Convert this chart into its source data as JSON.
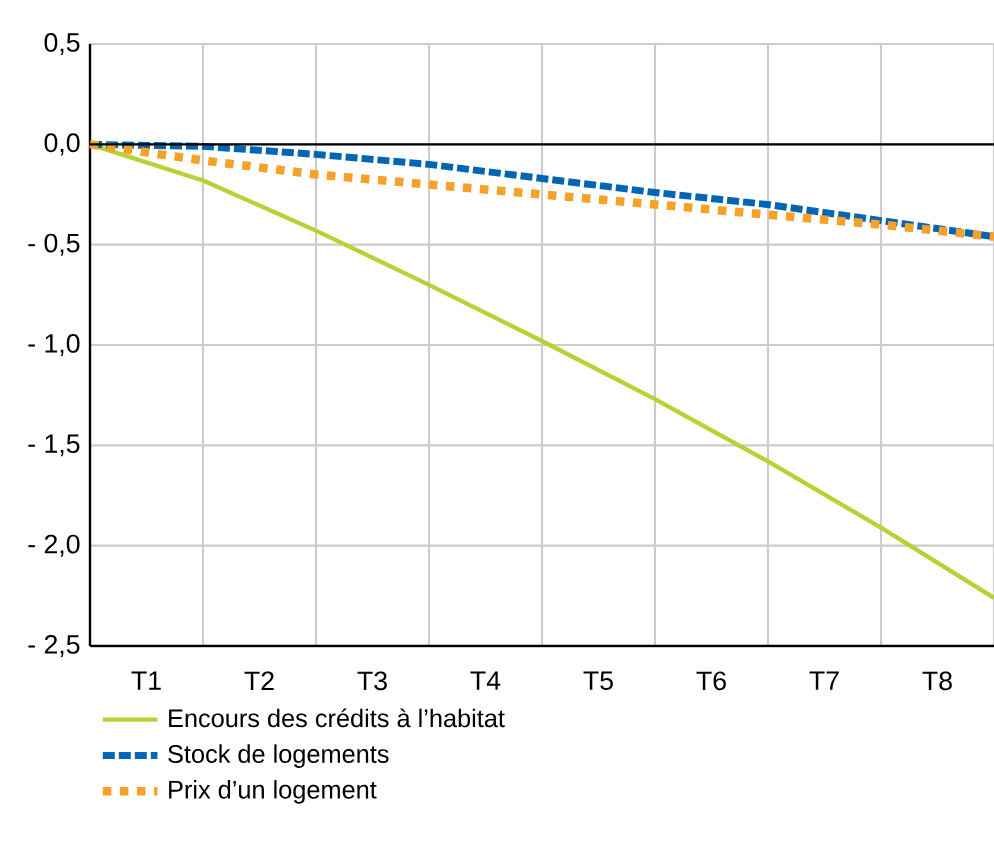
{
  "chart_data": {
    "type": "line",
    "categories": [
      null,
      null,
      null,
      null,
      null,
      null,
      null,
      null,
      null
    ],
    "annotations": [
      "T1",
      "T2",
      "T3",
      "T4",
      "T5",
      "T6",
      "T7",
      "T8"
    ],
    "series": [
      {
        "name": "Encours des crédits à l’habitat",
        "color": "#b5d334",
        "line_style": "solid",
        "values": [
          0,
          -0.18,
          -0.43,
          -0.7,
          -0.98,
          -1.27,
          -1.58,
          -1.91,
          -2.26
        ]
      },
      {
        "name": "Stock de logements",
        "color": "#0066b3",
        "line_style": "dashed",
        "values": [
          0,
          -0.01,
          -0.05,
          -0.1,
          -0.17,
          -0.24,
          -0.3,
          -0.38,
          -0.46
        ]
      },
      {
        "name": "Prix d’un logement",
        "color": "#f7a128",
        "line_style": "dotted",
        "values": [
          0,
          -0.08,
          -0.15,
          -0.2,
          -0.25,
          -0.3,
          -0.35,
          -0.4,
          -0.46
        ]
      }
    ],
    "ylim": [
      -2.5,
      0.5
    ],
    "yticks": [
      {
        "value": 0.5,
        "label": "0,5"
      },
      {
        "value": 0,
        "label": "0,0"
      },
      {
        "value": -0.5,
        "label": "- 0,5"
      },
      {
        "value": -1,
        "label": "- 1,0"
      },
      {
        "value": -1.5,
        "label": "- 1,5"
      },
      {
        "value": -2,
        "label": "- 2,0"
      },
      {
        "value": -2.5,
        "label": "- 2,5"
      }
    ],
    "ref_lines": [
      {
        "axis": "y",
        "value": 0,
        "color": "#000000"
      }
    ],
    "grid": true,
    "legend": "bottom"
  }
}
